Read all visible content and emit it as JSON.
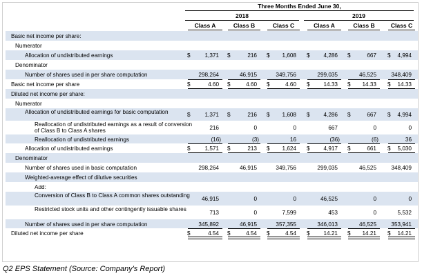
{
  "caption": "Q2 EPS Statement (Source: Company's Report)",
  "header": {
    "period": "Three Months Ended June 30,",
    "years": [
      "2018",
      "2019"
    ],
    "classes": [
      "Class A",
      "Class B",
      "Class C",
      "Class A",
      "Class B",
      "Class C"
    ]
  },
  "rows": [
    {
      "label": "Basic net income per share:",
      "indent": 0,
      "band": true,
      "values": [],
      "dollar": false
    },
    {
      "label": "Numerator",
      "indent": 1,
      "band": false,
      "values": [],
      "dollar": false
    },
    {
      "label": "Allocation of undistributed earnings",
      "indent": 2,
      "band": true,
      "values": [
        "1,371",
        "216",
        "1,608",
        "4,286",
        "667",
        "4,994"
      ],
      "dollar": true
    },
    {
      "label": "Denominator",
      "indent": 1,
      "band": false,
      "values": [],
      "dollar": false
    },
    {
      "label": "Number of shares used in per share computation",
      "indent": 2,
      "band": true,
      "values": [
        "298,264",
        "46,915",
        "349,756",
        "299,035",
        "46,525",
        "348,409"
      ],
      "dollar": false
    },
    {
      "label": "Basic net income per share",
      "indent": 0,
      "band": false,
      "values": [
        "4.60",
        "4.60",
        "4.60",
        "14.33",
        "14.33",
        "14.33"
      ],
      "dollar": true
    },
    {
      "label": "Diluted net income per share:",
      "indent": 0,
      "band": true,
      "values": [],
      "dollar": false
    },
    {
      "label": "Numerator",
      "indent": 1,
      "band": false,
      "values": [],
      "dollar": false
    },
    {
      "label": "Allocation of undistributed earnings for basic computation",
      "indent": 2,
      "band": true,
      "values": [
        "1,371",
        "216",
        "1,608",
        "4,286",
        "667",
        "4,994"
      ],
      "dollar": true
    },
    {
      "label": "Reallocation of undistributed earnings as a result of conversion of Class B to Class A shares",
      "indent": 3,
      "band": false,
      "values": [
        "216",
        "0",
        "0",
        "667",
        "0",
        "0"
      ],
      "dollar": false
    },
    {
      "label": "Reallocation of undistributed earnings",
      "indent": 3,
      "band": true,
      "values": [
        "(16)",
        "(3)",
        "16",
        "(36)",
        "(6)",
        "36"
      ],
      "dollar": false
    },
    {
      "label": "Allocation of undistributed earnings",
      "indent": 2,
      "band": false,
      "values": [
        "1,571",
        "213",
        "1,624",
        "4,917",
        "661",
        "5,030"
      ],
      "dollar": true
    },
    {
      "label": "Denominator",
      "indent": 1,
      "band": true,
      "values": [],
      "dollar": false
    },
    {
      "label": "Number of shares used in basic computation",
      "indent": 2,
      "band": false,
      "values": [
        "298,264",
        "46,915",
        "349,756",
        "299,035",
        "46,525",
        "348,409"
      ],
      "dollar": false
    },
    {
      "label": "Weighted-average effect of dilutive securities",
      "indent": 2,
      "band": true,
      "values": [],
      "dollar": false
    },
    {
      "label": "Add:",
      "indent": 3,
      "band": false,
      "values": [],
      "dollar": false
    },
    {
      "label": "Conversion of Class B to Class A common shares outstanding",
      "indent": 3,
      "band": true,
      "values": [
        "46,915",
        "0",
        "0",
        "46,525",
        "0",
        "0"
      ],
      "dollar": false
    },
    {
      "label": "Restricted stock units and other contingently issuable shares",
      "indent": 3,
      "band": false,
      "values": [
        "713",
        "0",
        "7,599",
        "453",
        "0",
        "5,532"
      ],
      "dollar": false
    },
    {
      "label": "Number of shares used in per share computation",
      "indent": 2,
      "band": true,
      "values": [
        "345,892",
        "46,915",
        "357,355",
        "346,013",
        "46,525",
        "353,941"
      ],
      "dollar": false
    },
    {
      "label": "Diluted net income per share",
      "indent": 0,
      "band": false,
      "values": [
        "4.54",
        "4.54",
        "4.54",
        "14.21",
        "14.21",
        "14.21"
      ],
      "dollar": true
    }
  ],
  "dollar_sign": "$"
}
